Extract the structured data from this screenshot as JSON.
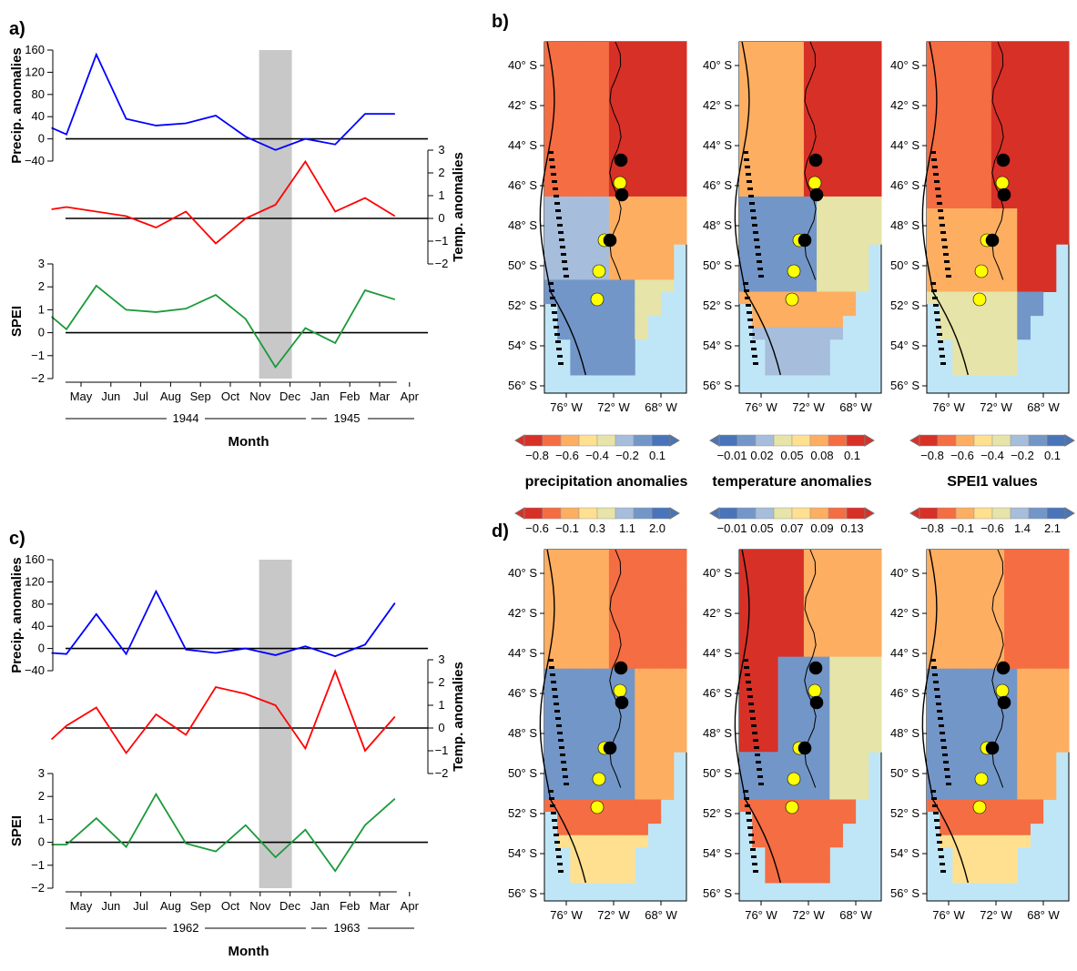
{
  "panel_labels": {
    "a": "a)",
    "b": "b)",
    "c": "c)",
    "d": "d)"
  },
  "colors": {
    "precip": "#0000ff",
    "temp": "#ff0000",
    "spei": "#1a9a3a",
    "highlight": "#c8c8c8",
    "ocean": "#bfe6f7",
    "site_black": "#000000",
    "site_yellow": "#ffff00"
  },
  "axes_titles": {
    "precip": "Precip. anomalies",
    "temp": "Temp. anomalies",
    "spei": "SPEI",
    "month": "Month"
  },
  "chart_data": [
    {
      "type": "line",
      "panel": "a",
      "categories": [
        "May",
        "Jun",
        "Jul",
        "Aug",
        "Sep",
        "Oct",
        "Nov",
        "Dec",
        "Jan",
        "Feb",
        "Mar",
        "Apr"
      ],
      "x": [
        0.5,
        1,
        2,
        3,
        3.5,
        4.5,
        5.5,
        6,
        6.5,
        7.5,
        8,
        8.5,
        9,
        9.5,
        10,
        11,
        12
      ],
      "years": [
        "1944",
        "1945"
      ],
      "highlight_month": "Dec",
      "series": [
        {
          "key": "precip",
          "values": [
            20,
            8,
            152,
            36,
            24,
            28,
            42,
            4,
            -20,
            0,
            -10,
            45,
            45
          ],
          "x": [
            0.5,
            1,
            2,
            3,
            4,
            5,
            6,
            7,
            8,
            9,
            10,
            11,
            12
          ],
          "yticks": [
            -40,
            0,
            40,
            80,
            120,
            160
          ],
          "ylim": [
            -40,
            160
          ]
        },
        {
          "key": "temp",
          "values": [
            0.4,
            0.5,
            0.1,
            -0.4,
            0.3,
            -1.1,
            0.0,
            0.6,
            2.5,
            0.3,
            0.9,
            0.1
          ],
          "x": [
            0.5,
            1,
            3,
            4,
            5,
            6,
            7,
            8,
            9,
            10,
            11,
            12
          ],
          "yticks": [
            -2,
            -1,
            0,
            1,
            2,
            3
          ],
          "ylim": [
            -2,
            3
          ]
        },
        {
          "key": "spei",
          "values": [
            0.7,
            0.15,
            2.05,
            1.0,
            0.9,
            1.05,
            1.65,
            0.6,
            -1.5,
            0.2,
            -0.45,
            1.85,
            1.45
          ],
          "x": [
            0.5,
            1,
            2,
            3,
            4,
            5,
            6,
            7,
            8,
            9,
            10,
            11,
            12
          ],
          "yticks": [
            -2,
            -1,
            0,
            1,
            2,
            3
          ],
          "ylim": [
            -2,
            3
          ]
        }
      ]
    },
    {
      "type": "line",
      "panel": "c",
      "categories": [
        "May",
        "Jun",
        "Jul",
        "Aug",
        "Sep",
        "Oct",
        "Nov",
        "Dec",
        "Jan",
        "Feb",
        "Mar",
        "Apr"
      ],
      "years": [
        "1962",
        "1963"
      ],
      "highlight_month": "Dec",
      "series": [
        {
          "key": "precip",
          "values": [
            -8,
            -10,
            62,
            -10,
            103,
            -2,
            -8,
            0,
            -12,
            4,
            -14,
            7,
            82
          ],
          "x": [
            0.5,
            1,
            2,
            3,
            4,
            5,
            6,
            7,
            8,
            9,
            10,
            11,
            12
          ],
          "yticks": [
            -40,
            0,
            40,
            80,
            120,
            160
          ],
          "ylim": [
            -40,
            160
          ]
        },
        {
          "key": "temp",
          "values": [
            -0.5,
            0.1,
            0.9,
            -1.1,
            0.6,
            -0.3,
            1.8,
            1.5,
            1.0,
            -0.9,
            2.5,
            -1.0,
            0.5
          ],
          "x": [
            0.5,
            1,
            2,
            3,
            4,
            5,
            6,
            7,
            8,
            9,
            10,
            11,
            12
          ],
          "yticks": [
            -2,
            -1,
            0,
            1,
            2,
            3
          ],
          "ylim": [
            -2,
            3
          ]
        },
        {
          "key": "spei",
          "values": [
            -0.1,
            -0.1,
            1.05,
            -0.2,
            2.1,
            -0.05,
            -0.4,
            0.75,
            -0.65,
            0.55,
            -1.25,
            0.75,
            1.9
          ],
          "x": [
            0.5,
            1,
            2,
            3,
            4,
            5,
            6,
            7,
            8,
            9,
            10,
            11,
            12
          ],
          "yticks": [
            -2,
            -1,
            0,
            1,
            2,
            3
          ],
          "ylim": [
            -2,
            3
          ]
        }
      ]
    }
  ],
  "maps": {
    "lat_labels": [
      "40° S",
      "42° S",
      "44° S",
      "46° S",
      "48° S",
      "50° S",
      "52° S",
      "54° S",
      "56° S"
    ],
    "lon_labels": [
      "76° W",
      "72° W",
      "68° W"
    ],
    "colorbars_b": [
      {
        "title": "precipitation anomalies",
        "ticks": [
          "−0.8",
          "−0.6",
          "−0.4",
          "−0.2",
          "0.1"
        ],
        "palette": "precip"
      },
      {
        "title": "temperature anomalies",
        "ticks": [
          "−0.01",
          "0.02",
          "0.05",
          "0.08",
          "0.1"
        ],
        "palette": "temp"
      },
      {
        "title": "SPEI1 values",
        "ticks": [
          "−0.8",
          "−0.6",
          "−0.4",
          "−0.2",
          "0.1"
        ],
        "palette": "precip"
      }
    ],
    "colorbars_d": [
      {
        "ticks": [
          "−0.6",
          "−0.1",
          "0.3",
          "1.1",
          "2.0"
        ],
        "palette": "precip"
      },
      {
        "ticks": [
          "−0.01",
          "0.05",
          "0.07",
          "0.09",
          "0.13"
        ],
        "palette": "temp"
      },
      {
        "ticks": [
          "−0.8",
          "−0.1",
          "−0.6",
          "1.4",
          "2.1"
        ],
        "palette": "precip"
      }
    ]
  }
}
